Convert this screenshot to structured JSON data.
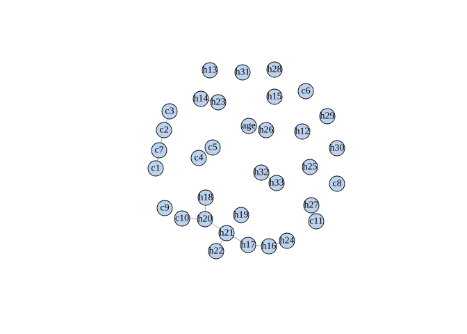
{
  "chart_data": {
    "type": "network",
    "title": "",
    "node_fill": "#bcd2ee",
    "node_stroke": "#000000",
    "edge_color": "#a8a8a8",
    "nodes": [
      "h13",
      "h31",
      "h28",
      "c6",
      "h14",
      "h23",
      "h15",
      "c3",
      "h29",
      "age",
      "h26",
      "h12",
      "c2",
      "c5",
      "h30",
      "c7",
      "c4",
      "h25",
      "c1",
      "h32",
      "h33",
      "c8",
      "h18",
      "h27",
      "c9",
      "c10",
      "h20",
      "h19",
      "c11",
      "h21",
      "h24",
      "h17",
      "h16",
      "h22"
    ],
    "edges": [
      [
        "c3",
        "c2"
      ],
      [
        "c2",
        "c7"
      ],
      [
        "c7",
        "c1"
      ],
      [
        "h14",
        "h23"
      ],
      [
        "h32",
        "h33"
      ],
      [
        "h27",
        "c11"
      ],
      [
        "c10",
        "h20"
      ],
      [
        "h18",
        "h20"
      ],
      [
        "h20",
        "h21"
      ],
      [
        "h21",
        "h22"
      ],
      [
        "h21",
        "h17"
      ],
      [
        "h17",
        "h16"
      ],
      [
        "h16",
        "h24"
      ]
    ]
  }
}
